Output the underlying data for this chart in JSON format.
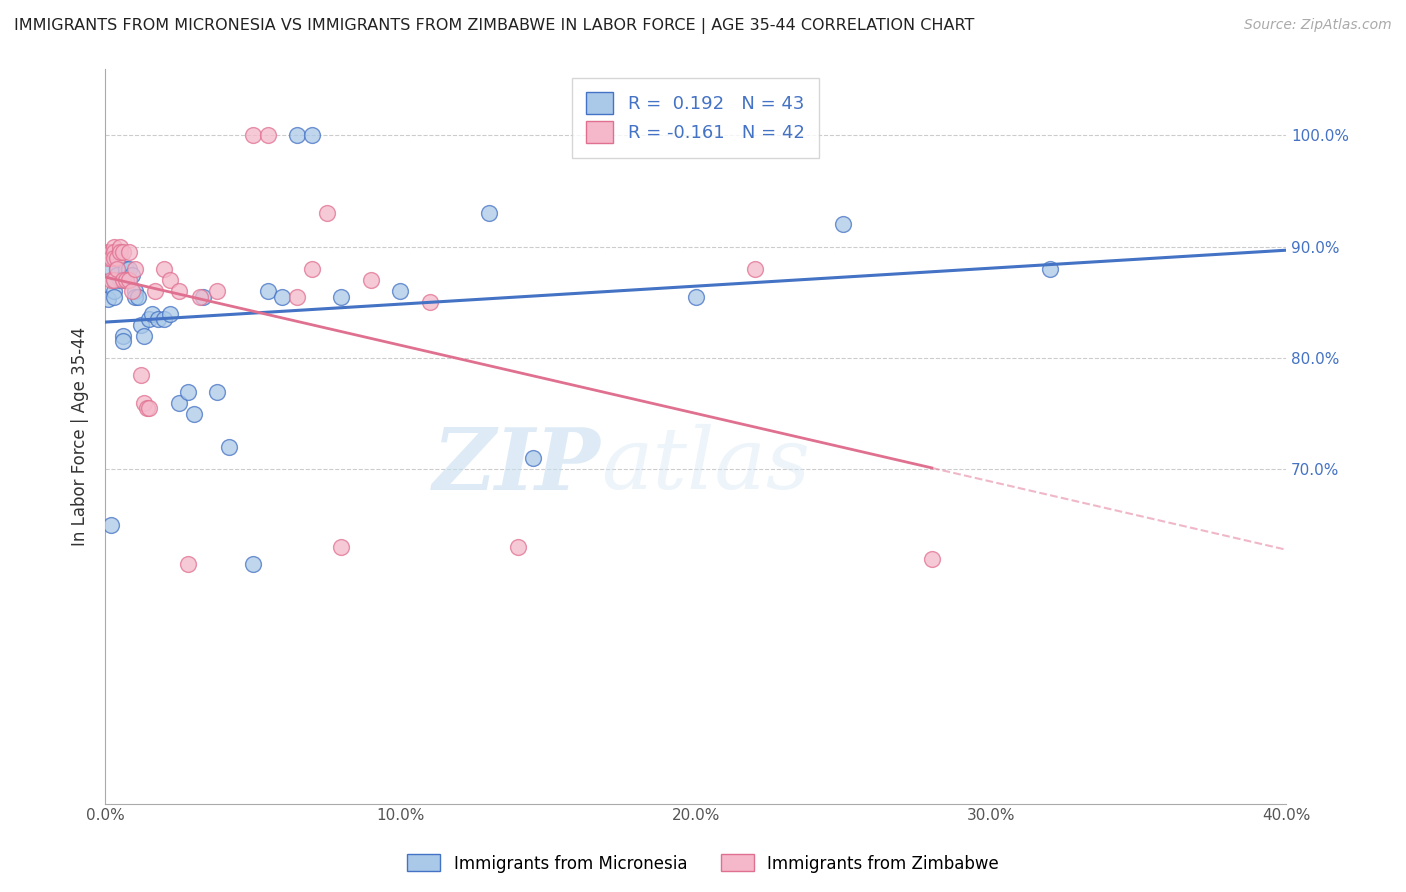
{
  "title": "IMMIGRANTS FROM MICRONESIA VS IMMIGRANTS FROM ZIMBABWE IN LABOR FORCE | AGE 35-44 CORRELATION CHART",
  "source": "Source: ZipAtlas.com",
  "ylabel": "In Labor Force | Age 35-44",
  "xlim": [
    0.0,
    0.4
  ],
  "ylim": [
    0.4,
    1.06
  ],
  "yticks": [
    0.7,
    0.8,
    0.9,
    1.0
  ],
  "ytick_labels": [
    "70.0%",
    "80.0%",
    "90.0%",
    "100.0%"
  ],
  "xticks": [
    0.0,
    0.05,
    0.1,
    0.15,
    0.2,
    0.25,
    0.3,
    0.35,
    0.4
  ],
  "xtick_labels": [
    "0.0%",
    "",
    "10.0%",
    "",
    "20.0%",
    "",
    "30.0%",
    "",
    "40.0%"
  ],
  "micronesia_R": 0.192,
  "micronesia_N": 43,
  "zimbabwe_R": -0.161,
  "zimbabwe_N": 42,
  "micronesia_color": "#aac9e8",
  "zimbabwe_color": "#f4b8ca",
  "micronesia_line_color": "#4472c4",
  "zimbabwe_line_color": "#e07090",
  "watermark_zip": "ZIP",
  "watermark_atlas": "atlas",
  "legend_label_micronesia": "Immigrants from Micronesia",
  "legend_label_zimbabwe": "Immigrants from Zimbabwe",
  "micronesia_x": [
    0.001,
    0.002,
    0.003,
    0.003,
    0.003,
    0.004,
    0.004,
    0.005,
    0.006,
    0.006,
    0.007,
    0.007,
    0.008,
    0.009,
    0.01,
    0.01,
    0.011,
    0.012,
    0.013,
    0.015,
    0.016,
    0.018,
    0.02,
    0.022,
    0.025,
    0.028,
    0.03,
    0.033,
    0.038,
    0.042,
    0.05,
    0.055,
    0.06,
    0.065,
    0.07,
    0.08,
    0.1,
    0.13,
    0.145,
    0.2,
    0.25,
    0.32,
    0.002
  ],
  "micronesia_y": [
    0.853,
    0.88,
    0.86,
    0.855,
    0.87,
    0.88,
    0.875,
    0.87,
    0.82,
    0.815,
    0.88,
    0.87,
    0.88,
    0.875,
    0.86,
    0.855,
    0.855,
    0.83,
    0.82,
    0.835,
    0.84,
    0.835,
    0.835,
    0.84,
    0.76,
    0.77,
    0.75,
    0.855,
    0.77,
    0.72,
    0.615,
    0.86,
    0.855,
    1.0,
    1.0,
    0.855,
    0.86,
    0.93,
    0.71,
    0.855,
    0.92,
    0.88,
    0.65
  ],
  "zimbabwe_x": [
    0.001,
    0.001,
    0.002,
    0.002,
    0.002,
    0.003,
    0.003,
    0.003,
    0.003,
    0.004,
    0.004,
    0.005,
    0.005,
    0.006,
    0.006,
    0.007,
    0.008,
    0.008,
    0.009,
    0.01,
    0.012,
    0.013,
    0.014,
    0.015,
    0.017,
    0.02,
    0.022,
    0.025,
    0.028,
    0.032,
    0.038,
    0.05,
    0.055,
    0.065,
    0.07,
    0.075,
    0.08,
    0.09,
    0.11,
    0.14,
    0.22,
    0.28
  ],
  "zimbabwe_y": [
    0.895,
    0.89,
    0.895,
    0.89,
    0.87,
    0.9,
    0.895,
    0.89,
    0.87,
    0.89,
    0.88,
    0.9,
    0.895,
    0.895,
    0.87,
    0.87,
    0.895,
    0.87,
    0.86,
    0.88,
    0.785,
    0.76,
    0.755,
    0.755,
    0.86,
    0.88,
    0.87,
    0.86,
    0.615,
    0.855,
    0.86,
    1.0,
    1.0,
    0.855,
    0.88,
    0.93,
    0.63,
    0.87,
    0.85,
    0.63,
    0.88,
    0.62
  ]
}
